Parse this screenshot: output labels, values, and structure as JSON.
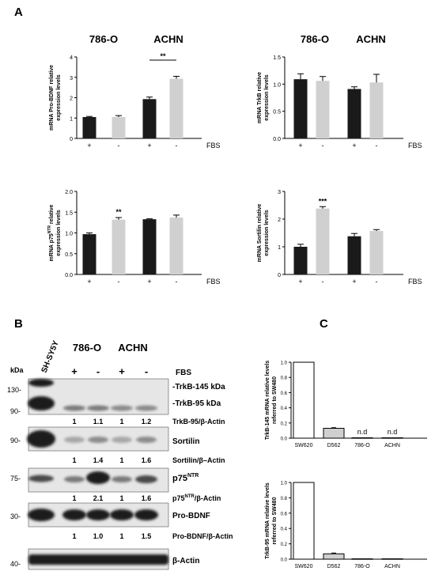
{
  "panels": {
    "a": "A",
    "b": "B",
    "c": "C"
  },
  "colors": {
    "bar_plus": "#1a1a1a",
    "bar_minus": "#d0d0d0",
    "bar_white": "#ffffff",
    "bar_d562": "#cfcfcf",
    "blot_bg": "#e6e6e6",
    "band": "#1e1e1e"
  },
  "panel_a": {
    "cell_headers": [
      "786-O",
      "ACHN"
    ],
    "treatment_marks": [
      "+",
      "-",
      "+",
      "-"
    ],
    "condition_label": "FBS"
  },
  "chart_data": [
    {
      "type": "bar",
      "categories": [
        "786-O +",
        "786-O -",
        "ACHN +",
        "ACHN -"
      ],
      "values": [
        1.05,
        1.05,
        1.93,
        2.93
      ],
      "errors": [
        0.03,
        0.07,
        0.1,
        0.12
      ],
      "ylabel": "mRNA Pro-BDNF relative expression levels",
      "ylim": [
        0,
        4
      ],
      "yticks": [
        "0",
        "1",
        "2",
        "3",
        "4"
      ],
      "significance": [
        "**"
      ]
    },
    {
      "type": "bar",
      "categories": [
        "786-O +",
        "786-O -",
        "ACHN +",
        "ACHN -"
      ],
      "values": [
        1.09,
        1.06,
        0.91,
        1.03
      ],
      "errors": [
        0.1,
        0.08,
        0.04,
        0.15
      ],
      "ylabel": "mRNA TrkB relative expression levels",
      "ylim": [
        0,
        1.5
      ],
      "yticks": [
        "0.0",
        "0.5",
        "1.0",
        "1.5"
      ],
      "significance": []
    },
    {
      "type": "bar",
      "categories": [
        "786-O +",
        "786-O -",
        "ACHN +",
        "ACHN -"
      ],
      "values": [
        0.97,
        1.32,
        1.33,
        1.37
      ],
      "errors": [
        0.03,
        0.05,
        0.01,
        0.06
      ],
      "ylabel_pre": "mRNA p75",
      "ylabel_sup": "NTR",
      "ylabel_post": " relative",
      "ylabel_line2": "expression levels",
      "ylim": [
        0,
        2.0
      ],
      "yticks": [
        "0.0",
        "0.5",
        "1.0",
        "1.5",
        "2.0"
      ],
      "significance": [
        "**"
      ]
    },
    {
      "type": "bar",
      "categories": [
        "786-O +",
        "786-O -",
        "ACHN +",
        "ACHN -"
      ],
      "values": [
        1.0,
        2.38,
        1.38,
        1.57
      ],
      "errors": [
        0.09,
        0.07,
        0.1,
        0.05
      ],
      "ylabel": "mRNA Sortilin relative expression levels",
      "ylim": [
        0,
        3
      ],
      "yticks": [
        "0",
        "1",
        "2",
        "3"
      ],
      "significance": [
        "***"
      ]
    },
    {
      "type": "bar",
      "categories": [
        "SW620",
        "D562",
        "786-O",
        "ACHN"
      ],
      "values": [
        1.0,
        0.13,
        0.005,
        0.005
      ],
      "errors": [
        0,
        0.008,
        0,
        0
      ],
      "ylabel": "TrkB-145 mRNA relative levels referred to SW480",
      "ylim": [
        0,
        1.0
      ],
      "yticks": [
        "0.0",
        "0.2",
        "0.4",
        "0.6",
        "0.8",
        "1.0"
      ],
      "annotations": [
        "",
        "",
        "n.d",
        "n.d"
      ]
    },
    {
      "type": "bar",
      "categories": [
        "SW620",
        "D562",
        "786-O",
        "ACHN"
      ],
      "values": [
        1.0,
        0.07,
        0.005,
        0.005
      ],
      "errors": [
        0,
        0.01,
        0,
        0
      ],
      "ylabel": "TrkB-95 mRNA relative levels referred to SW480",
      "ylim": [
        0,
        1.0
      ],
      "yticks": [
        "0.0",
        "0.2",
        "0.4",
        "0.6",
        "0.8",
        "1.0"
      ],
      "annotations": [
        "",
        "",
        "",
        ""
      ]
    }
  ],
  "blot": {
    "sample_label": "SH-SY5Y",
    "cell_headers": [
      "786-O",
      "ACHN"
    ],
    "kda_label": "kDa",
    "treatment_marks": [
      "+",
      "-",
      "+",
      "-"
    ],
    "condition_label": "FBS",
    "markers": [
      "130-",
      "90-",
      "90-",
      "75-",
      "30-",
      "40-"
    ],
    "trkb_labels": [
      "-TrkB-145 kDa",
      "-TrkB-95 kDa"
    ],
    "labels": {
      "sortilin": "Sortilin",
      "p75_base": "p75",
      "p75_sup": "NTR",
      "probdnf": "Pro-BDNF",
      "actin": "β-Actin"
    },
    "quant": [
      {
        "values": [
          "1",
          "1.1",
          "1",
          "1.2"
        ],
        "label": "TrkB-95/β-Actin"
      },
      {
        "values": [
          "1",
          "1.4",
          "1",
          "1.6"
        ],
        "label": "Sortilin/β–Actin"
      },
      {
        "values": [
          "1",
          "2.1",
          "1",
          "1.6"
        ],
        "label_pre": "p75",
        "label_sup": "NTR",
        "label_post": "/β-Actin"
      },
      {
        "values": [
          "1",
          "1.0",
          "1",
          "1.5"
        ],
        "label": "Pro-BDNF/β-Actin"
      }
    ]
  }
}
